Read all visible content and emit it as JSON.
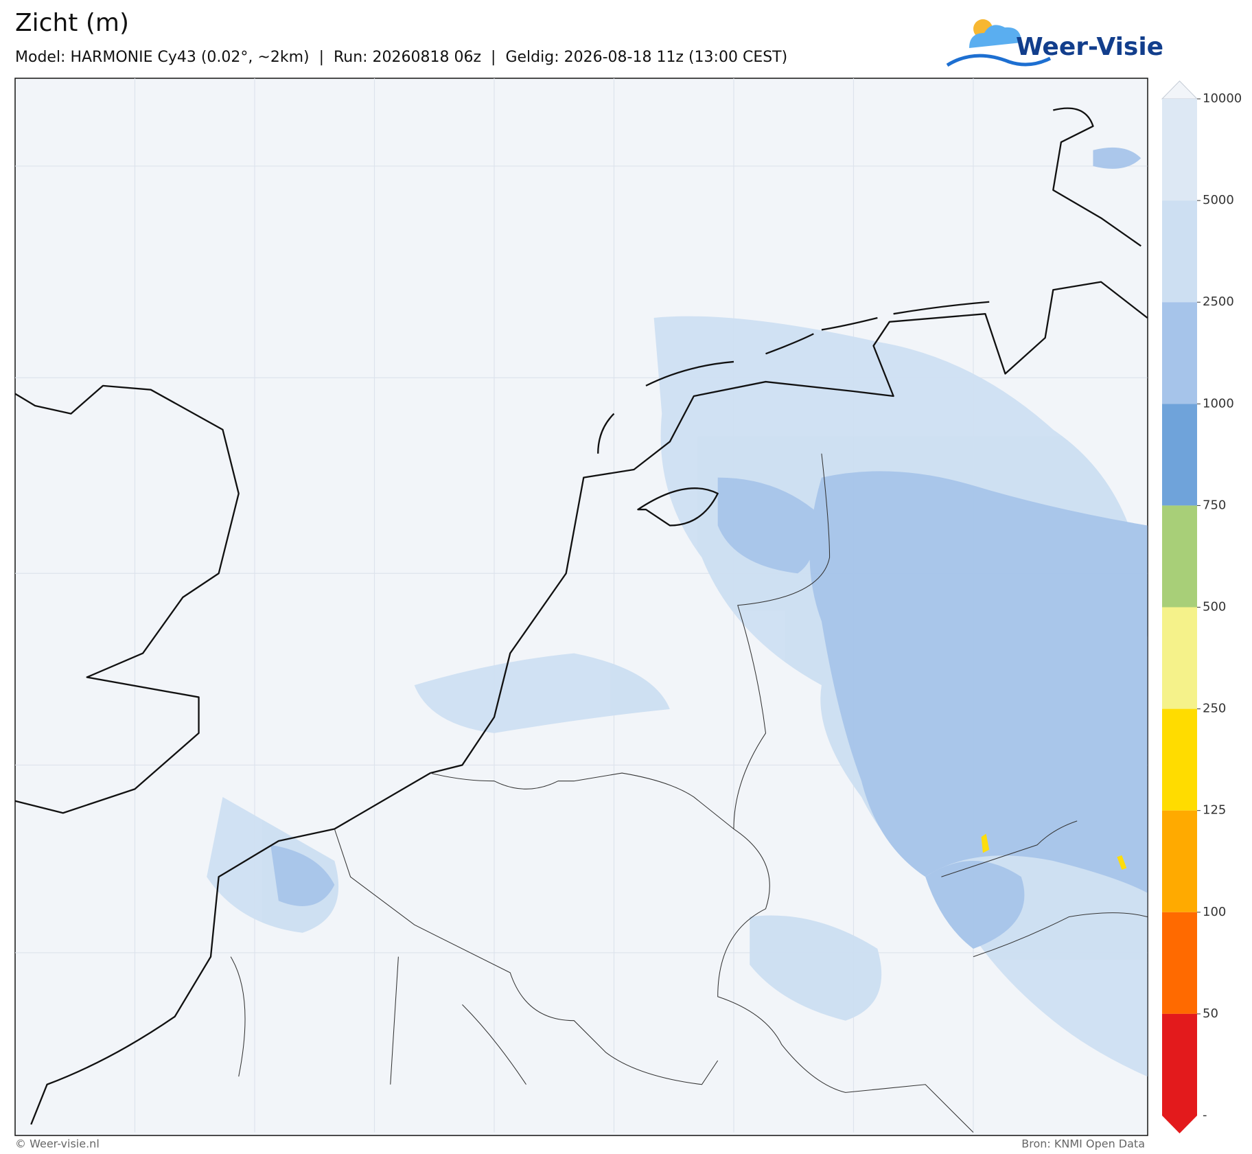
{
  "header": {
    "title": "Zicht (m)",
    "subtitle": "Model: HARMONIE Cy43 (0.02°, ~2km)  |  Run: 20260818 06z  |  Geldig: 2026-08-18 11z (13:00 CEST)",
    "logo": "Weer-Visie"
  },
  "colorbar": {
    "ticks": [
      10000,
      5000,
      2500,
      1000,
      750,
      500,
      250,
      125,
      100,
      50
    ],
    "bottom_label": "-",
    "colors": [
      "#f2f5f9",
      "#dde8f4",
      "#cddff2",
      "#a6c4ea",
      "#6fa3da",
      "#a8cf78",
      "#f5f28a",
      "#ffdc00",
      "#ffaa00",
      "#ff6a00",
      "#e31a1c"
    ]
  },
  "footer": {
    "left": "© Weer-visie.nl",
    "right": "Bron: KNMI Open Data"
  }
}
